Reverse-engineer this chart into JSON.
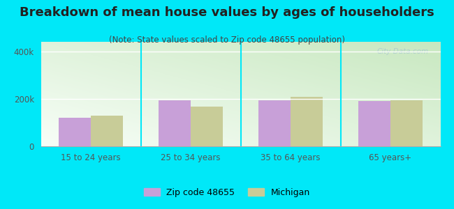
{
  "title": "Breakdown of mean house values by ages of householders",
  "subtitle": "(Note: State values scaled to Zip code 48655 population)",
  "categories": [
    "15 to 24 years",
    "25 to 34 years",
    "35 to 64 years",
    "65 years+"
  ],
  "zip_values": [
    120000,
    193000,
    193000,
    191000
  ],
  "state_values": [
    130000,
    168000,
    208000,
    195000
  ],
  "zip_color": "#c8a0d8",
  "state_color": "#c8cc98",
  "ylim": [
    0,
    440000
  ],
  "ytick_labels": [
    "0",
    "200k",
    "400k"
  ],
  "ytick_values": [
    0,
    200000,
    400000
  ],
  "background_color": "#00e8f8",
  "legend_zip_label": "Zip code 48655",
  "legend_state_label": "Michigan",
  "bar_width": 0.32,
  "title_fontsize": 13,
  "subtitle_fontsize": 8.5,
  "axis_label_fontsize": 8.5,
  "legend_fontsize": 9,
  "grad_bottom": "#c8e8c0",
  "grad_top": "#f0faf0",
  "title_color": "#222222",
  "subtitle_color": "#444444",
  "tick_color": "#555555"
}
